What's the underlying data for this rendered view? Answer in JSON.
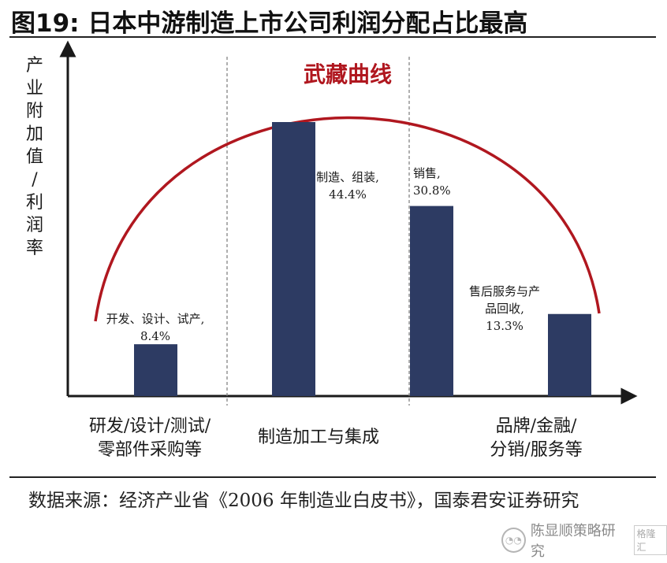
{
  "title": "图19: 日本中游制造上市公司利润分配占比最高",
  "source": "数据来源：经济产业省《2006 年制造业白皮书》，国泰君安证券研究",
  "watermark": {
    "text": "陈显顺策略研究",
    "logo": "格隆汇",
    "icon": "wechat-icon"
  },
  "chart_data": {
    "type": "bar",
    "curve_label": "武藏曲线",
    "ylabel": "产业附加值/利润率",
    "colors": {
      "bar": "#2d3b63",
      "curve": "#b0171f",
      "axis": "#1a1a1a",
      "divider": "#7a7a7a"
    },
    "categories": [
      [
        "研发/设计/测试/",
        "零部件采购等"
      ],
      [
        "制造加工与集成"
      ],
      [
        "品牌/金融/",
        "分销/服务等"
      ]
    ],
    "bars": [
      {
        "label": [
          "开发、设计、试产,",
          "8.4%"
        ],
        "value": 8.4,
        "group": 0
      },
      {
        "label": [
          "制造、组装,",
          "44.4%"
        ],
        "value": 44.4,
        "group": 1
      },
      {
        "label": [
          "销售,",
          "30.8%"
        ],
        "value": 30.8,
        "group": 2
      },
      {
        "label": [
          "售后服务与产",
          "品回收,",
          "13.3%"
        ],
        "value": 13.3,
        "group": 2
      }
    ],
    "ylim": [
      0,
      50
    ]
  }
}
